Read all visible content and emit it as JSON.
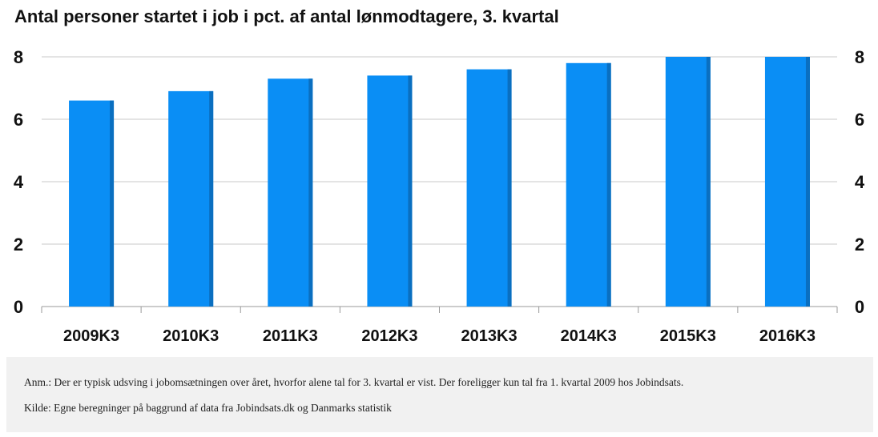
{
  "chart_data": {
    "type": "bar",
    "title": "Antal personer startet i job i pct. af antal lønmodtagere, 3. kvartal",
    "categories": [
      "2009K3",
      "2010K3",
      "2011K3",
      "2012K3",
      "2013K3",
      "2014K3",
      "2015K3",
      "2016K3"
    ],
    "values": [
      6.6,
      6.9,
      7.3,
      7.4,
      7.6,
      7.8,
      8.0,
      8.0
    ],
    "ylim": [
      0,
      8
    ],
    "yticks": [
      "0",
      "2",
      "4",
      "6",
      "8"
    ],
    "secondary_yticks": [
      "0",
      "2",
      "4",
      "6",
      "8"
    ],
    "grid": true,
    "legend": "none",
    "bar_color": "#0a8ef5",
    "bar_shade_color": "#0a6fc0"
  },
  "notes": {
    "anm": "Anm.: Der er typisk udsving i jobomsætningen over året, hvorfor alene tal for 3. kvartal er vist. Der foreligger kun tal fra 1. kvartal 2009 hos Jobindsats.",
    "kilde": "Kilde: Egne beregninger på baggrund af data fra Jobindsats.dk og Danmarks statistik"
  }
}
